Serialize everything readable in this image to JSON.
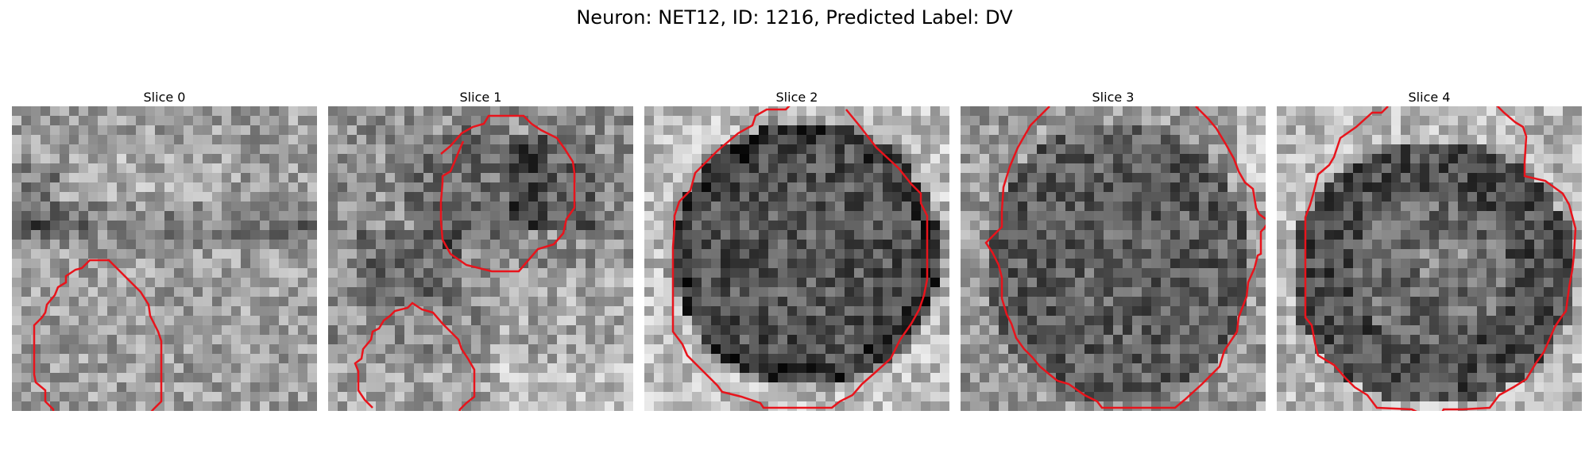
{
  "title": "Neuron: NET12, ID: 1216, Predicted Label: DV",
  "panels": [
    {
      "label": "Slice 0",
      "seed": 11,
      "scene": "s0"
    },
    {
      "label": "Slice 1",
      "seed": 23,
      "scene": "s1"
    },
    {
      "label": "Slice 2",
      "seed": 37,
      "scene": "s2"
    },
    {
      "label": "Slice 3",
      "seed": 53,
      "scene": "s3"
    },
    {
      "label": "Slice 4",
      "seed": 71,
      "scene": "s4"
    }
  ],
  "contour_color": "#e8141c"
}
